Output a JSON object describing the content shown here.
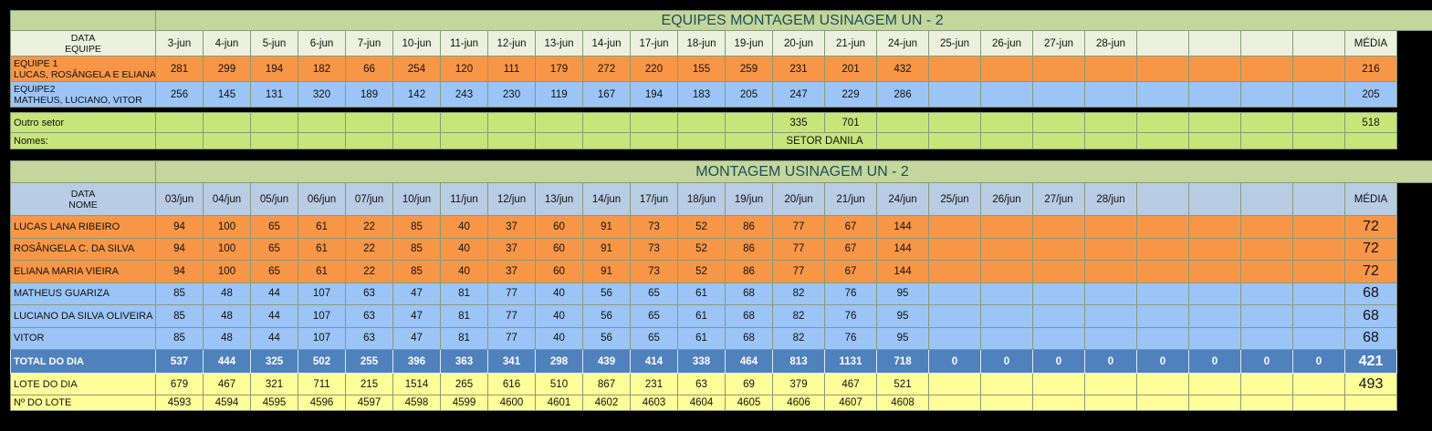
{
  "top": {
    "title": "EQUIPES MONTAGEM USINAGEM UN - 2",
    "corner_line1": "DATA",
    "corner_line2": "EQUIPE",
    "dates": [
      "3-jun",
      "4-jun",
      "5-jun",
      "6-jun",
      "7-jun",
      "10-jun",
      "11-jun",
      "12-jun",
      "13-jun",
      "14-jun",
      "17-jun",
      "18-jun",
      "19-jun",
      "20-jun",
      "21-jun",
      "24-jun",
      "25-jun",
      "26-jun",
      "27-jun",
      "28-jun",
      "",
      "",
      "",
      ""
    ],
    "avg_label": "MÉDIA",
    "teams": [
      {
        "line1": "EQUIPE 1",
        "line2": "LUCAS, ROSÂNGELA E ELIANA",
        "values": [
          "281",
          "299",
          "194",
          "182",
          "66",
          "254",
          "120",
          "111",
          "179",
          "272",
          "220",
          "155",
          "259",
          "231",
          "201",
          "432",
          "",
          "",
          "",
          "",
          "",
          "",
          "",
          ""
        ],
        "avg": "216"
      },
      {
        "line1": "EQUIPE2",
        "line2": "MATHEUS, LUCIANO, VITOR",
        "values": [
          "256",
          "145",
          "131",
          "320",
          "189",
          "142",
          "243",
          "230",
          "119",
          "167",
          "194",
          "183",
          "205",
          "247",
          "229",
          "286",
          "",
          "",
          "",
          "",
          "",
          "",
          "",
          ""
        ],
        "avg": "205"
      }
    ],
    "other_label": "Outro setor",
    "other_values": [
      "",
      "",
      "",
      "",
      "",
      "",
      "",
      "",
      "",
      "",
      "",
      "",
      "",
      "335",
      "701",
      "",
      "",
      "",
      "",
      "",
      "",
      "",
      "",
      ""
    ],
    "other_avg": "518",
    "names_label": "Nomes:",
    "names_value": "SETOR DANILA"
  },
  "bottom": {
    "title": "MONTAGEM USINAGEM UN - 2",
    "corner_line1": "DATA",
    "corner_line2": "NOME",
    "dates": [
      "03/jun",
      "04/jun",
      "05/jun",
      "06/jun",
      "07/jun",
      "10/jun",
      "11/jun",
      "12/jun",
      "13/jun",
      "14/jun",
      "17/jun",
      "18/jun",
      "19/jun",
      "20/jun",
      "21/jun",
      "24/jun",
      "25/jun",
      "26/jun",
      "27/jun",
      "28/jun",
      "",
      "",
      "",
      ""
    ],
    "avg_label": "MÉDIA",
    "people": [
      {
        "name": "LUCAS LANA RIBEIRO",
        "group": "orange",
        "values": [
          "94",
          "100",
          "65",
          "61",
          "22",
          "85",
          "40",
          "37",
          "60",
          "91",
          "73",
          "52",
          "86",
          "77",
          "67",
          "144",
          "",
          "",
          "",
          "",
          "",
          "",
          "",
          ""
        ],
        "avg": "72"
      },
      {
        "name": "ROSÂNGELA C. DA SILVA",
        "group": "orange",
        "values": [
          "94",
          "100",
          "65",
          "61",
          "22",
          "85",
          "40",
          "37",
          "60",
          "91",
          "73",
          "52",
          "86",
          "77",
          "67",
          "144",
          "",
          "",
          "",
          "",
          "",
          "",
          "",
          ""
        ],
        "avg": "72"
      },
      {
        "name": "ELIANA MARIA VIEIRA",
        "group": "orange",
        "values": [
          "94",
          "100",
          "65",
          "61",
          "22",
          "85",
          "40",
          "37",
          "60",
          "91",
          "73",
          "52",
          "86",
          "77",
          "67",
          "144",
          "",
          "",
          "",
          "",
          "",
          "",
          "",
          ""
        ],
        "avg": "72"
      },
      {
        "name": "MATHEUS GUARIZA",
        "group": "blue",
        "values": [
          "85",
          "48",
          "44",
          "107",
          "63",
          "47",
          "81",
          "77",
          "40",
          "56",
          "65",
          "61",
          "68",
          "82",
          "76",
          "95",
          "",
          "",
          "",
          "",
          "",
          "",
          "",
          ""
        ],
        "avg": "68"
      },
      {
        "name": "LUCIANO DA SILVA OLIVEIRA",
        "group": "blue",
        "values": [
          "85",
          "48",
          "44",
          "107",
          "63",
          "47",
          "81",
          "77",
          "40",
          "56",
          "65",
          "61",
          "68",
          "82",
          "76",
          "95",
          "",
          "",
          "",
          "",
          "",
          "",
          "",
          ""
        ],
        "avg": "68"
      },
      {
        "name": "VITOR",
        "group": "blue",
        "values": [
          "85",
          "48",
          "44",
          "107",
          "63",
          "47",
          "81",
          "77",
          "40",
          "56",
          "65",
          "61",
          "68",
          "82",
          "76",
          "95",
          "",
          "",
          "",
          "",
          "",
          "",
          "",
          ""
        ],
        "avg": "68"
      }
    ],
    "total_label": "TOTAL DO DIA",
    "total_values": [
      "537",
      "444",
      "325",
      "502",
      "255",
      "396",
      "363",
      "341",
      "298",
      "439",
      "414",
      "338",
      "464",
      "813",
      "1131",
      "718",
      "0",
      "0",
      "0",
      "0",
      "0",
      "0",
      "0",
      "0"
    ],
    "total_avg": "421",
    "lote_label": "LOTE DO DIA",
    "lote_values": [
      "679",
      "467",
      "321",
      "711",
      "215",
      "1514",
      "265",
      "616",
      "510",
      "867",
      "231",
      "63",
      "69",
      "379",
      "467",
      "521",
      "",
      "",
      "",
      "",
      "",
      "",
      "",
      ""
    ],
    "lote_avg": "493",
    "nlote_label": "Nº DO LOTE",
    "nlote_values": [
      "4593",
      "4594",
      "4595",
      "4596",
      "4597",
      "4598",
      "4599",
      "4600",
      "4601",
      "4602",
      "4603",
      "4604",
      "4605",
      "4606",
      "4607",
      "4608",
      "",
      "",
      "",
      "",
      "",
      "",
      "",
      ""
    ]
  },
  "colors": {
    "orange": "#f79646",
    "blue": "#9bc4f7",
    "lime": "#c6e67a",
    "total": "#4f81bd",
    "yellow": "#ffff99",
    "header_green": "#c3d69b"
  }
}
